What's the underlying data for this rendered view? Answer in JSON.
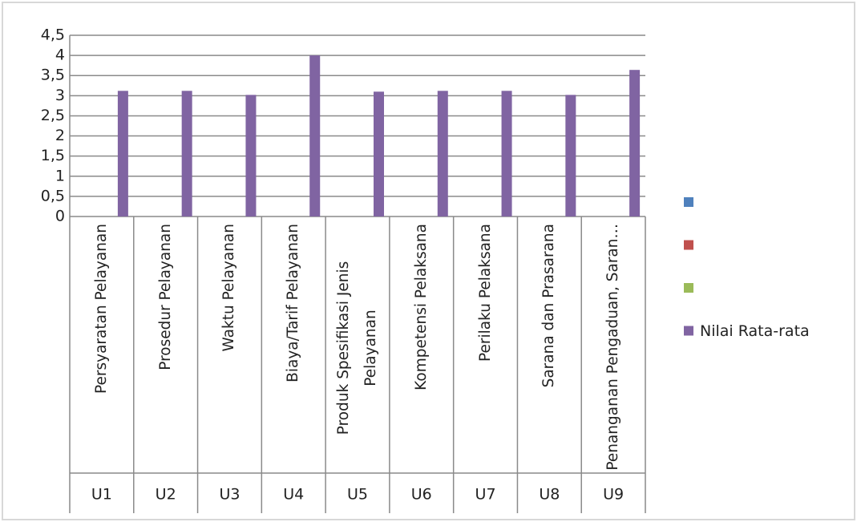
{
  "chart_data": {
    "type": "bar",
    "categories": [
      "Persyaratan Pelayanan",
      "Prosedur Pelayanan",
      "Waktu Pelayanan",
      "Biaya/Tarif Pelayanan",
      "Produk Spesifikasi Jenis Pelayanan",
      "Kompetensi Pelaksana",
      "Perilaku Pelaksana",
      "Sarana dan Prasarana",
      "Penanganan Pengaduan, Saran…"
    ],
    "category_groups": [
      "U1",
      "U2",
      "U3",
      "U4",
      "U5",
      "U6",
      "U7",
      "U8",
      "U9"
    ],
    "series": [
      {
        "color": "#4f81bd",
        "values": [
          null,
          null,
          null,
          null,
          null,
          null,
          null,
          null,
          null
        ]
      },
      {
        "color": "#c0504d",
        "values": [
          null,
          null,
          null,
          null,
          null,
          null,
          null,
          null,
          null
        ]
      },
      {
        "color": "#9bbb59",
        "values": [
          null,
          null,
          null,
          null,
          null,
          null,
          null,
          null,
          null
        ]
      },
      {
        "name": "Nilai Rata-rata",
        "color": "#8064a2",
        "values": [
          3.12,
          3.12,
          3.02,
          4.0,
          3.1,
          3.12,
          3.12,
          3.02,
          3.64
        ]
      }
    ],
    "ylim": [
      0,
      4.5
    ],
    "yticks": [
      0,
      {
        "value": 0.5,
        "label": "0,5"
      },
      1,
      {
        "value": 1.5,
        "label": "1,5"
      },
      2,
      {
        "value": 2.5,
        "label": "2,5"
      },
      3,
      {
        "value": 3.5,
        "label": "3,5"
      },
      4,
      {
        "value": 4.5,
        "label": "4,5"
      }
    ],
    "grid": true,
    "legend": "right"
  }
}
